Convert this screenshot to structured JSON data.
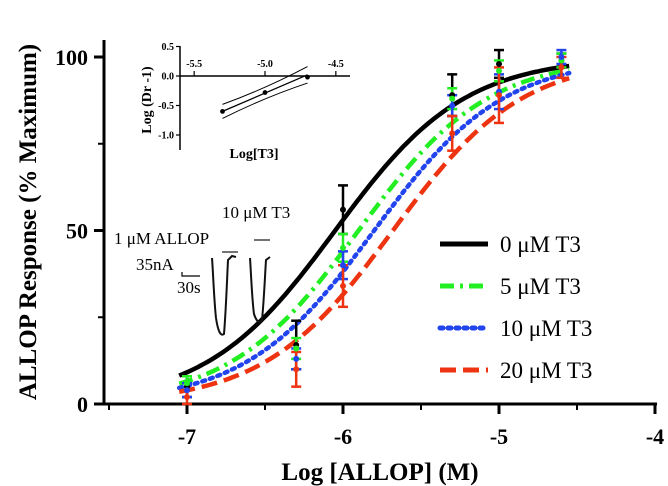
{
  "chart_data": {
    "type": "line",
    "xlabel": "Log [ALLOP] (M)",
    "ylabel": "ALLOP Response (% Maximum)",
    "xlim": [
      -7.5,
      -4
    ],
    "ylim": [
      0,
      100
    ],
    "xticks": [
      -7,
      -6,
      -5,
      -4
    ],
    "yticks": [
      0,
      50,
      100
    ],
    "xtick_labels": [
      "-7",
      "-6",
      "-5",
      "-4"
    ],
    "ytick_labels": [
      "0",
      "50",
      "100"
    ],
    "legend_position": "right",
    "grid": false,
    "x": [
      -7,
      -6.3,
      -6,
      -5.3,
      -5,
      -4.6
    ],
    "series": [
      {
        "name": "0 μM T3",
        "color": "#000000",
        "dash": "solid",
        "logEC50": -6.05,
        "hill": 1.05,
        "values": [
          5,
          17,
          56,
          89,
          98,
          99
        ],
        "errors": [
          3,
          7,
          7,
          6,
          4,
          2
        ]
      },
      {
        "name": "5 μM T3",
        "color": "#22ee22",
        "dash": "dashdot",
        "logEC50": -5.9,
        "hill": 1.05,
        "values": [
          6,
          16,
          45,
          88,
          96,
          99
        ],
        "errors": [
          2,
          3,
          4,
          3,
          3,
          2
        ]
      },
      {
        "name": "10 μM T3",
        "color": "#2244ee",
        "dash": "dot",
        "logEC50": -5.8,
        "hill": 1.05,
        "values": [
          4,
          13,
          40,
          86,
          90,
          100
        ],
        "errors": [
          2,
          3,
          4,
          3,
          5,
          2
        ]
      },
      {
        "name": "20 μM T3",
        "color": "#ee3311",
        "dash": "dash",
        "logEC50": -5.68,
        "hill": 1.05,
        "values": [
          2,
          10,
          34,
          78,
          89,
          97
        ],
        "errors": [
          2,
          5,
          6,
          5,
          8,
          3
        ]
      }
    ],
    "annotations": {
      "allop_label": "1 μM ALLOP",
      "t3_label": "10 μM T3",
      "current_scale": "35nA",
      "time_scale": "30s"
    },
    "inset": {
      "type": "scatter",
      "xlabel": "Log[T3]",
      "ylabel": "Log (Dr -1)",
      "xlim": [
        -5.6,
        -4.4
      ],
      "ylim": [
        -1.25,
        0.55
      ],
      "xticks": [
        -5.5,
        -5.0,
        -4.5
      ],
      "xtick_labels": [
        "-5.5",
        "-5.0",
        "-4.5"
      ],
      "yticks": [
        0.5,
        0.0,
        -0.5,
        -1.0
      ],
      "ytick_labels": [
        "0.5",
        "0.0",
        "-0.5",
        "-1.0"
      ],
      "x": [
        -5.3,
        -5.0,
        -4.7
      ],
      "y": [
        -0.6,
        -0.28,
        -0.02
      ],
      "fit": {
        "x1": -5.3,
        "y1": -0.6,
        "x2": -4.7,
        "y2": 0.02
      }
    }
  }
}
